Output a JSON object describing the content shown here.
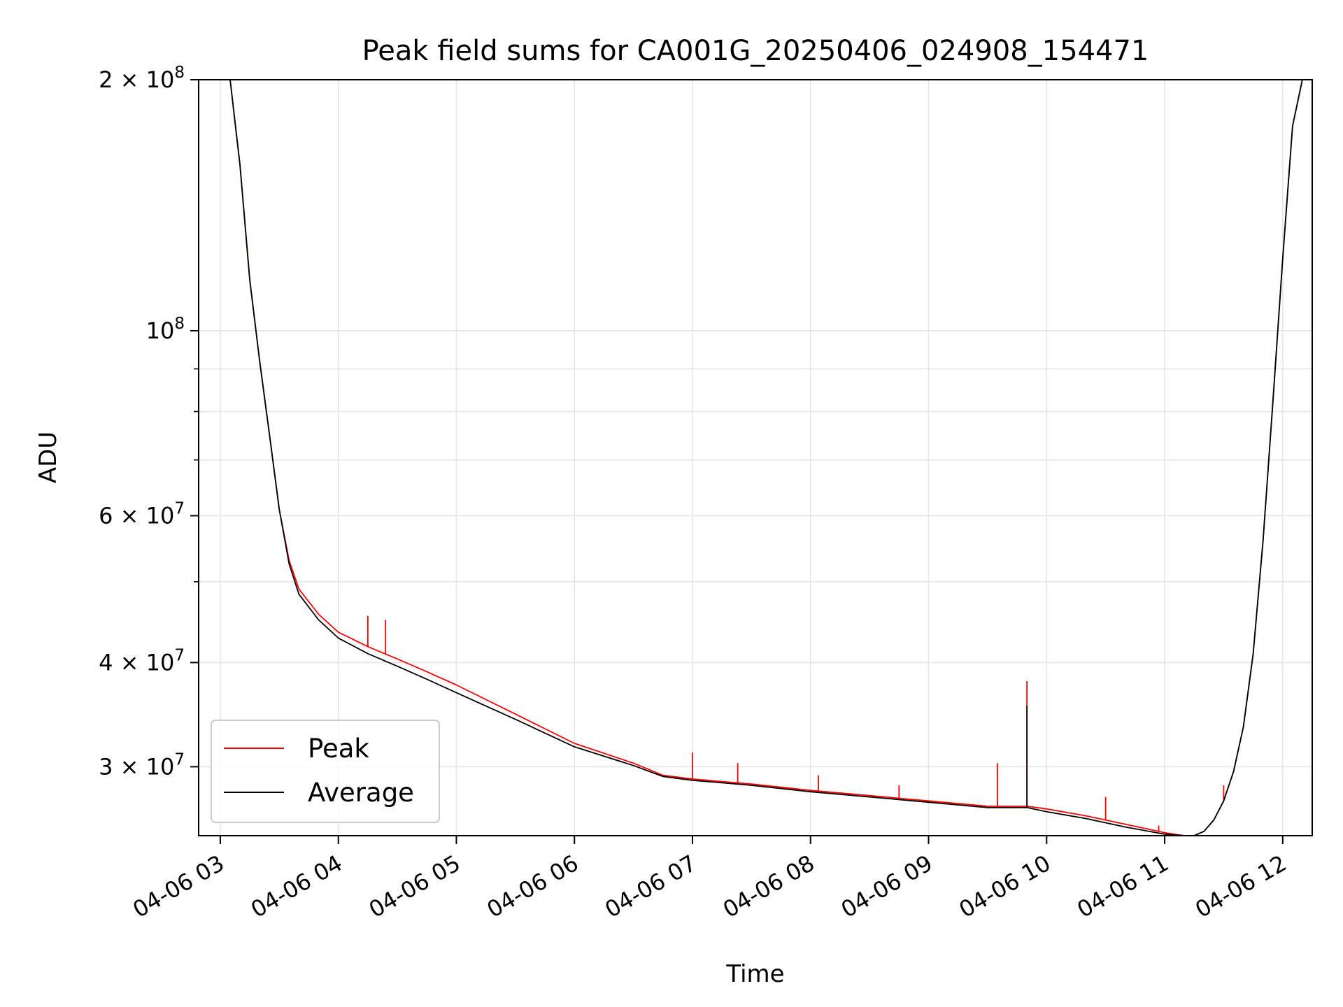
{
  "chart_data": {
    "type": "line",
    "title": "Peak field sums for CA001G_20250406_024908_154471",
    "xlabel": "Time",
    "ylabel": "ADU",
    "yscale": "log",
    "xlim": [
      "2025-04-06 02:49",
      "2025-04-06 12:15"
    ],
    "ylim": [
      24800000,
      200000000
    ],
    "x_ticks": [
      "04-06 03",
      "04-06 04",
      "04-06 05",
      "04-06 06",
      "04-06 07",
      "04-06 08",
      "04-06 09",
      "04-06 10",
      "04-06 11",
      "04-06 12"
    ],
    "y_major_ticks": [
      {
        "value": 200000000,
        "mantissa": "2",
        "exp": "8"
      },
      {
        "value": 100000000,
        "mantissa": "",
        "exp": "8"
      },
      {
        "value": 60000000,
        "mantissa": "6",
        "exp": "7"
      },
      {
        "value": 40000000,
        "mantissa": "4",
        "exp": "7"
      },
      {
        "value": 30000000,
        "mantissa": "3",
        "exp": "7"
      }
    ],
    "y_minor_ticks": [
      90000000,
      80000000,
      70000000,
      50000000
    ],
    "grid": true,
    "legend_position": "bottom-left",
    "colors": {
      "Peak": "#ff0000",
      "Average": "#000000"
    },
    "series": [
      {
        "name": "Peak",
        "x": [
          "2025-04-06 02:58",
          "2025-04-06 03:05",
          "2025-04-06 03:10",
          "2025-04-06 03:15",
          "2025-04-06 03:20",
          "2025-04-06 03:25",
          "2025-04-06 03:30",
          "2025-04-06 03:35",
          "2025-04-06 03:40",
          "2025-04-06 03:50",
          "2025-04-06 04:00",
          "2025-04-06 04:15",
          "2025-04-06 04:30",
          "2025-04-06 04:45",
          "2025-04-06 05:00",
          "2025-04-06 05:30",
          "2025-04-06 06:00",
          "2025-04-06 06:30",
          "2025-04-06 06:45",
          "2025-04-06 07:00",
          "2025-04-06 07:30",
          "2025-04-06 08:00",
          "2025-04-06 08:30",
          "2025-04-06 09:00",
          "2025-04-06 09:30",
          "2025-04-06 09:50",
          "2025-04-06 10:00",
          "2025-04-06 10:20",
          "2025-04-06 10:40",
          "2025-04-06 11:00",
          "2025-04-06 11:10",
          "2025-04-06 11:15",
          "2025-04-06 11:20",
          "2025-04-06 11:25",
          "2025-04-06 11:30",
          "2025-04-06 11:35",
          "2025-04-06 11:40",
          "2025-04-06 11:45",
          "2025-04-06 11:50",
          "2025-04-06 11:55",
          "2025-04-06 12:00",
          "2025-04-06 12:05",
          "2025-04-06 12:10",
          "2025-04-06 12:15"
        ],
        "values": [
          200000000,
          200000000,
          158000000,
          115000000,
          92000000,
          75000000,
          61000000,
          53000000,
          49000000,
          45700000,
          43500000,
          41800000,
          40400000,
          39000000,
          37600000,
          34700000,
          32000000,
          30300000,
          29300000,
          29000000,
          28600000,
          28100000,
          27700000,
          27300000,
          26900000,
          26900000,
          26700000,
          26200000,
          25600000,
          25000000,
          24800000,
          24800000,
          25100000,
          25900000,
          27300000,
          29600000,
          33500000,
          41000000,
          56000000,
          82000000,
          122000000,
          176000000,
          200000000,
          200000000
        ],
        "spikes": [
          {
            "x": "2025-04-06 04:15",
            "value": 45500000
          },
          {
            "x": "2025-04-06 04:24",
            "value": 45000000
          },
          {
            "x": "2025-04-06 07:00",
            "value": 31200000
          },
          {
            "x": "2025-04-06 07:23",
            "value": 30300000
          },
          {
            "x": "2025-04-06 08:04",
            "value": 29300000
          },
          {
            "x": "2025-04-06 08:45",
            "value": 28500000
          },
          {
            "x": "2025-04-06 09:35",
            "value": 30300000
          },
          {
            "x": "2025-04-06 09:50",
            "value": 38000000
          },
          {
            "x": "2025-04-06 10:30",
            "value": 27600000
          },
          {
            "x": "2025-04-06 10:57",
            "value": 25500000
          },
          {
            "x": "2025-04-06 11:30",
            "value": 28500000
          }
        ]
      },
      {
        "name": "Average",
        "x": [
          "2025-04-06 02:58",
          "2025-04-06 03:05",
          "2025-04-06 03:10",
          "2025-04-06 03:15",
          "2025-04-06 03:20",
          "2025-04-06 03:25",
          "2025-04-06 03:30",
          "2025-04-06 03:35",
          "2025-04-06 03:40",
          "2025-04-06 03:50",
          "2025-04-06 04:00",
          "2025-04-06 04:15",
          "2025-04-06 04:30",
          "2025-04-06 04:45",
          "2025-04-06 05:00",
          "2025-04-06 05:30",
          "2025-04-06 06:00",
          "2025-04-06 06:30",
          "2025-04-06 06:45",
          "2025-04-06 07:00",
          "2025-04-06 07:30",
          "2025-04-06 08:00",
          "2025-04-06 08:30",
          "2025-04-06 09:00",
          "2025-04-06 09:30",
          "2025-04-06 09:50",
          "2025-04-06 10:00",
          "2025-04-06 10:20",
          "2025-04-06 10:40",
          "2025-04-06 11:00",
          "2025-04-06 11:10",
          "2025-04-06 11:15",
          "2025-04-06 11:20",
          "2025-04-06 11:25",
          "2025-04-06 11:30",
          "2025-04-06 11:35",
          "2025-04-06 11:40",
          "2025-04-06 11:45",
          "2025-04-06 11:50",
          "2025-04-06 11:55",
          "2025-04-06 12:00",
          "2025-04-06 12:05",
          "2025-04-06 12:10",
          "2025-04-06 12:15"
        ],
        "values": [
          200000000,
          200000000,
          158000000,
          115000000,
          92000000,
          75000000,
          61000000,
          52500000,
          48300000,
          45000000,
          42800000,
          41000000,
          39600000,
          38200000,
          36800000,
          34200000,
          31700000,
          30100000,
          29200000,
          28900000,
          28500000,
          28000000,
          27600000,
          27200000,
          26800000,
          26800000,
          26500000,
          26000000,
          25400000,
          24900000,
          24800000,
          24800000,
          25100000,
          25900000,
          27300000,
          29600000,
          33500000,
          41000000,
          56000000,
          82000000,
          122000000,
          176000000,
          200000000,
          200000000
        ],
        "spikes": [
          {
            "x": "2025-04-06 09:50",
            "value": 35500000
          }
        ]
      }
    ]
  }
}
